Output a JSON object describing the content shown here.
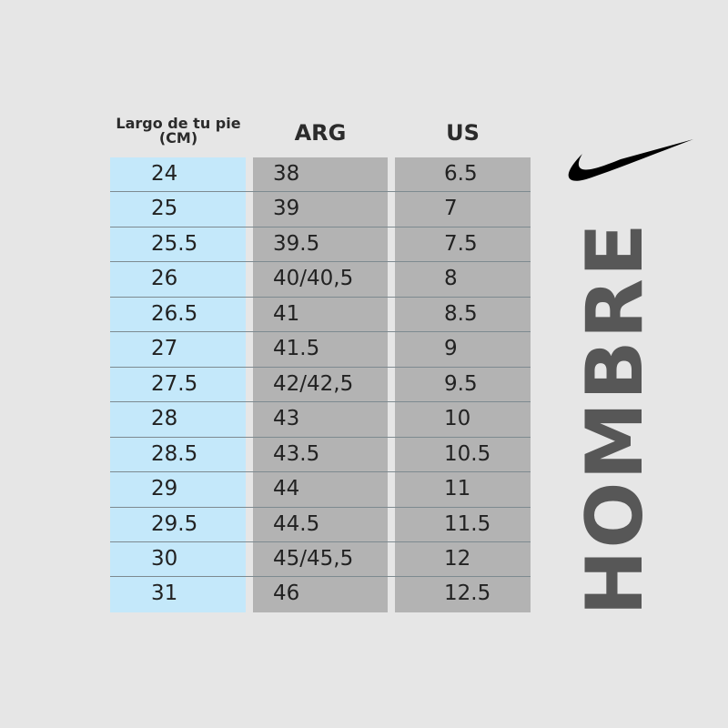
{
  "headers": {
    "cm": "Largo de tu pie (CM)",
    "arg": "ARG",
    "us": "US"
  },
  "rows": [
    {
      "cm": "24",
      "arg": "38",
      "us": "6.5"
    },
    {
      "cm": "25",
      "arg": "39",
      "us": "7"
    },
    {
      "cm": "25.5",
      "arg": "39.5",
      "us": "7.5"
    },
    {
      "cm": "26",
      "arg": "40/40,5",
      "us": "8"
    },
    {
      "cm": "26.5",
      "arg": "41",
      "us": "8.5"
    },
    {
      "cm": "27",
      "arg": "41.5",
      "us": "9"
    },
    {
      "cm": "27.5",
      "arg": "42/42,5",
      "us": "9.5"
    },
    {
      "cm": "28",
      "arg": "43",
      "us": "10"
    },
    {
      "cm": "28.5",
      "arg": "43.5",
      "us": "10.5"
    },
    {
      "cm": "29",
      "arg": "44",
      "us": "11"
    },
    {
      "cm": "29.5",
      "arg": "44.5",
      "us": "11.5"
    },
    {
      "cm": "30",
      "arg": "45/45,5",
      "us": "12"
    },
    {
      "cm": "31",
      "arg": "46",
      "us": "12.5"
    }
  ],
  "side_label": "HOMBRE",
  "logo": "nike-swoosh-icon",
  "colors": {
    "cm_column": "#c4e8fa",
    "size_columns": "#b3b3b3",
    "background": "#e6e6e6",
    "side_label": "#575757"
  }
}
